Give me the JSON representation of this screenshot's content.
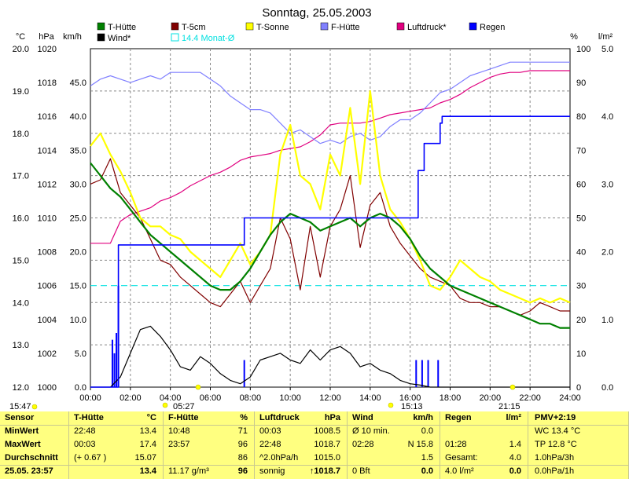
{
  "chart_data": {
    "type": "line",
    "title": "Sonntag, 25.05.2003",
    "x_ticks": [
      "00:00",
      "02:00",
      "04:00",
      "06:00",
      "08:00",
      "10:00",
      "12:00",
      "14:00",
      "16:00",
      "18:00",
      "20:00",
      "22:00",
      "24:00"
    ],
    "axes": {
      "celsius": {
        "unit": "°C",
        "range": [
          12.0,
          20.0
        ],
        "ticks": [
          "20.0",
          "19.0",
          "18.0",
          "17.0",
          "16.0",
          "15.0",
          "14.0",
          "13.0",
          "12.0"
        ]
      },
      "hpa": {
        "unit": "hPa",
        "range": [
          1000,
          1020
        ],
        "ticks": [
          "1020",
          "1018",
          "1016",
          "1014",
          "1012",
          "1010",
          "1008",
          "1006",
          "1004",
          "1002",
          "1000"
        ]
      },
      "kmh": {
        "unit": "km/h",
        "range": [
          0,
          50
        ],
        "ticks": [
          "45.0",
          "40.0",
          "35.0",
          "30.0",
          "25.0",
          "20.0",
          "15.0",
          "10.0",
          "5.0",
          "0.0"
        ]
      },
      "percent": {
        "unit": "%",
        "range": [
          0,
          100
        ],
        "ticks": [
          "100",
          "90",
          "80",
          "70",
          "60",
          "50",
          "40",
          "30",
          "20",
          "10",
          "0"
        ]
      },
      "rain": {
        "unit": "l/m²",
        "range": [
          0,
          5
        ],
        "ticks": [
          "5.0",
          "4.0",
          "3.0",
          "2.0",
          "1.0",
          "0.0"
        ]
      }
    },
    "grid": true,
    "legend_position": "top",
    "legend": [
      {
        "name": "T-Hütte",
        "color": "#008000"
      },
      {
        "name": "T-5cm",
        "color": "#800000"
      },
      {
        "name": "T-Sonne",
        "color": "#ffff00"
      },
      {
        "name": "F-Hütte",
        "color": "#8080ff"
      },
      {
        "name": "Luftdruck*",
        "color": "#e0007f"
      },
      {
        "name": "Regen",
        "color": "#0000ff"
      },
      {
        "name": "Wind*",
        "color": "#000000"
      },
      {
        "name": "14.4 Monat-Ø",
        "color": "#00e0e0"
      }
    ],
    "monthly_avg_celsius": 14.4,
    "series": [
      {
        "name": "T-Hütte",
        "axis": "celsius",
        "color": "#008000",
        "x": [
          0,
          0.5,
          1,
          1.5,
          2,
          2.5,
          3,
          3.5,
          4,
          4.5,
          5,
          5.5,
          6,
          6.5,
          7,
          7.5,
          8,
          8.5,
          9,
          9.5,
          10,
          10.5,
          11,
          11.5,
          12,
          12.5,
          13,
          13.5,
          14,
          14.5,
          15,
          15.5,
          16,
          16.5,
          17,
          17.5,
          18,
          18.5,
          19,
          19.5,
          20,
          20.5,
          21,
          21.5,
          22,
          22.5,
          23,
          23.5,
          24
        ],
        "y": [
          17.3,
          17.0,
          16.7,
          16.5,
          16.2,
          15.9,
          15.6,
          15.4,
          15.2,
          15.0,
          14.8,
          14.6,
          14.4,
          14.3,
          14.3,
          14.5,
          14.8,
          15.2,
          15.6,
          15.9,
          16.1,
          16.0,
          15.9,
          15.7,
          15.8,
          15.9,
          16.0,
          15.8,
          16.0,
          16.1,
          16.0,
          15.8,
          15.5,
          15.1,
          14.8,
          14.6,
          14.4,
          14.3,
          14.2,
          14.1,
          14.0,
          13.9,
          13.8,
          13.7,
          13.6,
          13.5,
          13.5,
          13.4,
          13.4
        ]
      },
      {
        "name": "T-5cm",
        "axis": "celsius",
        "color": "#800000",
        "x": [
          0,
          0.5,
          1,
          1.5,
          2,
          2.5,
          3,
          3.5,
          4,
          4.5,
          5,
          5.5,
          6,
          6.5,
          7,
          7.5,
          8,
          8.5,
          9,
          9.5,
          10,
          10.5,
          11,
          11.5,
          12,
          12.5,
          13,
          13.5,
          14,
          14.5,
          15,
          15.5,
          16,
          16.5,
          17,
          17.5,
          18,
          18.5,
          19,
          19.5,
          20,
          20.5,
          21,
          21.5,
          22,
          22.5,
          23,
          23.5,
          24
        ],
        "y": [
          16.8,
          16.9,
          17.4,
          16.6,
          16.3,
          16.0,
          15.5,
          15.0,
          14.9,
          14.6,
          14.4,
          14.2,
          14.0,
          13.9,
          14.2,
          14.5,
          14.0,
          14.4,
          14.8,
          16.0,
          15.5,
          14.3,
          15.8,
          14.6,
          15.8,
          16.2,
          17.0,
          15.3,
          16.3,
          16.6,
          15.8,
          15.4,
          15.1,
          14.8,
          14.6,
          14.5,
          14.4,
          14.1,
          14.0,
          14.0,
          13.9,
          13.9,
          13.8,
          13.7,
          13.8,
          14.0,
          13.9,
          13.8,
          13.8
        ]
      },
      {
        "name": "T-Sonne",
        "axis": "celsius",
        "color": "#ffff00",
        "x": [
          0,
          0.5,
          1,
          1.5,
          2,
          2.5,
          3,
          3.5,
          4,
          4.5,
          5,
          5.5,
          6,
          6.5,
          7,
          7.5,
          8,
          8.5,
          9,
          9.5,
          10,
          10.5,
          11,
          11.5,
          12,
          12.5,
          13,
          13.5,
          14,
          14.5,
          15,
          15.5,
          16,
          16.5,
          17,
          17.5,
          18,
          18.5,
          19,
          19.5,
          20,
          20.5,
          21,
          21.5,
          22,
          22.5,
          23,
          23.5,
          24
        ],
        "y": [
          17.7,
          18.0,
          17.5,
          17.1,
          16.6,
          16.0,
          15.8,
          15.8,
          15.6,
          15.5,
          15.2,
          15.0,
          14.8,
          14.6,
          15.0,
          15.4,
          14.9,
          15.2,
          15.6,
          17.5,
          18.2,
          17.0,
          16.8,
          16.2,
          17.5,
          17.0,
          18.6,
          16.8,
          19.0,
          17.0,
          16.2,
          15.9,
          15.5,
          15.0,
          14.4,
          14.3,
          14.6,
          15.0,
          14.8,
          14.6,
          14.5,
          14.3,
          14.2,
          14.1,
          14.0,
          14.1,
          14.0,
          14.1,
          14.0
        ]
      },
      {
        "name": "F-Hütte",
        "axis": "percent",
        "color": "#8080ff",
        "x": [
          0,
          0.5,
          1,
          1.5,
          2,
          2.5,
          3,
          3.5,
          4,
          4.5,
          5,
          5.5,
          6,
          6.5,
          7,
          7.5,
          8,
          8.5,
          9,
          9.5,
          10,
          10.5,
          11,
          11.5,
          12,
          12.5,
          13,
          13.5,
          14,
          14.5,
          15,
          15.5,
          16,
          16.5,
          17,
          17.5,
          18,
          18.5,
          19,
          19.5,
          20,
          20.5,
          21,
          21.5,
          22,
          22.5,
          23,
          23.5,
          24
        ],
        "y": [
          89,
          91,
          92,
          91,
          90,
          91,
          92,
          91,
          93,
          93,
          93,
          93,
          91,
          89,
          86,
          84,
          82,
          82,
          81,
          78,
          75,
          76,
          74,
          72,
          73,
          72,
          74,
          75,
          73,
          74,
          77,
          79,
          79,
          81,
          84,
          87,
          88,
          90,
          92,
          93,
          94,
          95,
          96,
          96,
          96,
          96,
          96,
          96,
          96
        ]
      },
      {
        "name": "Luftdruck*",
        "axis": "hpa",
        "color": "#e0007f",
        "x": [
          0,
          0.5,
          1,
          1.5,
          2,
          2.5,
          3,
          3.5,
          4,
          4.5,
          5,
          5.5,
          6,
          6.5,
          7,
          7.5,
          8,
          8.5,
          9,
          9.5,
          10,
          10.5,
          11,
          11.5,
          12,
          12.5,
          13,
          13.5,
          14,
          14.5,
          15,
          15.5,
          16,
          16.5,
          17,
          17.5,
          18,
          18.5,
          19,
          19.5,
          20,
          20.5,
          21,
          21.5,
          22,
          22.5,
          23,
          23.5,
          24
        ],
        "y": [
          1008.5,
          1008.5,
          1008.5,
          1009.8,
          1010.2,
          1010.4,
          1010.6,
          1011.0,
          1011.2,
          1011.5,
          1011.9,
          1012.2,
          1012.5,
          1012.7,
          1013.0,
          1013.4,
          1013.6,
          1013.7,
          1013.8,
          1014.0,
          1014.1,
          1014.2,
          1014.5,
          1014.9,
          1015.5,
          1015.6,
          1015.6,
          1015.6,
          1015.7,
          1015.9,
          1016.1,
          1016.2,
          1016.3,
          1016.4,
          1016.5,
          1016.8,
          1017.0,
          1017.3,
          1017.7,
          1018.0,
          1018.3,
          1018.5,
          1018.6,
          1018.6,
          1018.7,
          1018.7,
          1018.7,
          1018.7,
          1018.7
        ]
      },
      {
        "name": "Wind*",
        "axis": "kmh",
        "color": "#000000",
        "x": [
          0,
          0.5,
          1,
          1.5,
          2,
          2.5,
          3,
          3.5,
          4,
          4.5,
          5,
          5.5,
          6,
          6.5,
          7,
          7.5,
          8,
          8.5,
          9,
          9.5,
          10,
          10.5,
          11,
          11.5,
          12,
          12.5,
          13,
          13.5,
          14,
          14.5,
          15,
          15.5,
          16,
          16.5,
          17,
          17.5,
          18,
          18.5,
          19,
          19.5,
          20,
          20.5,
          21,
          21.5,
          22,
          22.5,
          23,
          23.5,
          24
        ],
        "y": [
          0,
          0,
          0,
          1.5,
          5.0,
          8.5,
          9.0,
          7.5,
          5.5,
          3.0,
          2.5,
          4.5,
          3.5,
          2.0,
          1.0,
          0.5,
          1.5,
          4.0,
          4.5,
          5.0,
          4.0,
          3.5,
          5.5,
          4.0,
          5.5,
          6.0,
          5.0,
          3.0,
          3.5,
          2.5,
          2.0,
          1.0,
          0.5,
          0.3,
          0,
          0,
          0,
          0,
          0,
          0,
          0,
          0,
          0,
          0,
          0,
          0,
          0,
          0,
          0
        ]
      },
      {
        "name": "Regen",
        "axis": "rain",
        "color": "#0000ff",
        "x": [
          0,
          1.2,
          1.4,
          7.7,
          7.7,
          16.0,
          16.4,
          16.7,
          17.2,
          17.5,
          17.6,
          24
        ],
        "y": [
          0,
          0,
          2.1,
          2.1,
          2.5,
          2.5,
          3.2,
          3.6,
          3.6,
          3.9,
          4.0,
          4.0
        ]
      }
    ],
    "rain_bars": {
      "axis": "rain",
      "x": [
        1.1,
        1.2,
        1.3,
        1.4,
        7.7,
        16.3,
        16.6,
        16.9,
        17.4
      ],
      "y": [
        0.7,
        0.5,
        0.8,
        1.5,
        0.4,
        0.4,
        0.4,
        0.4,
        0.4
      ]
    },
    "below_axis_labels": {
      "left": "15:47",
      "sunrise": "05:27",
      "sunset": "21:15",
      "mid": "15:13"
    }
  },
  "table": [
    {
      "rows": [
        "Sensor",
        "MinWert",
        "MaxWert",
        "Durchschnitt",
        "25.05. 23:57"
      ]
    },
    {
      "head": "T-Hütte",
      "unit": "°C",
      "rows": [
        [
          "22:48",
          "13.4"
        ],
        [
          "00:03",
          "17.4"
        ],
        [
          "(+ 0.67 )",
          "15.07"
        ],
        [
          "",
          "13.4"
        ]
      ]
    },
    {
      "head": "F-Hütte",
      "unit": "%",
      "rows": [
        [
          "10:48",
          "71"
        ],
        [
          "23:57",
          "96"
        ],
        [
          "",
          "86"
        ],
        [
          "11.17 g/m³",
          "96"
        ]
      ]
    },
    {
      "head": "Luftdruck",
      "unit": "hPa",
      "rows": [
        [
          "00:03",
          "1008.5"
        ],
        [
          "22:48",
          "1018.7"
        ],
        [
          "^2.0hPa/h",
          "1015.0"
        ],
        [
          "sonnig",
          "↑1018.7"
        ]
      ]
    },
    {
      "head": "Wind",
      "unit": "km/h",
      "rows": [
        [
          "Ø 10 min.",
          "0.0"
        ],
        [
          "02:28",
          "N 15.8"
        ],
        [
          "",
          "1.5"
        ],
        [
          "0 Bft",
          "0.0"
        ]
      ]
    },
    {
      "head": "Regen",
      "unit": "l/m²",
      "rows": [
        [
          "",
          ""
        ],
        [
          "01:28",
          "1.4"
        ],
        [
          "Gesamt:",
          "4.0"
        ],
        [
          "4.0 l/m²",
          "0.0"
        ]
      ]
    },
    {
      "head": "PMV+2:19",
      "rows": [
        "WC 13.4 °C",
        "TP 12.8 °C",
        "1.0hPa/3h",
        "0.0hPa/1h"
      ]
    }
  ]
}
